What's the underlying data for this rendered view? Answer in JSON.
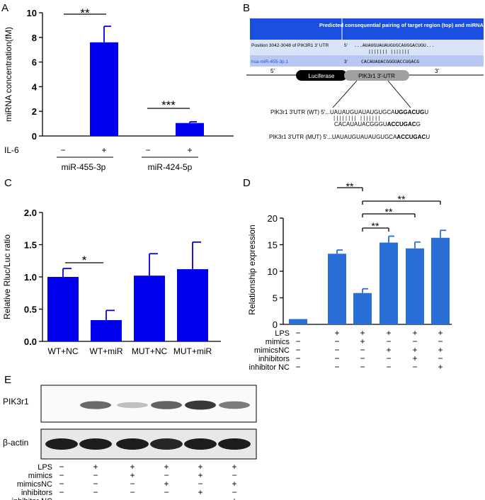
{
  "colors": {
    "bar_blue": "#0000ee",
    "bar_mid": "#2a6fd6",
    "header_blue": "#1a4fe0",
    "row_light": "#b8c8f2",
    "row_lighter": "#dbe3f8",
    "pill_black": "#000000",
    "pill_gray": "#a0a0a0",
    "band_dark": "#161616"
  },
  "panels": {
    "A": "A",
    "B": "B",
    "C": "C",
    "D": "D",
    "E": "E"
  },
  "chart_data": [
    {
      "panel": "A",
      "type": "bar",
      "ylabel": "miRNA concentration(fM)",
      "ylim": [
        0,
        10
      ],
      "yticks": [
        "0",
        "2",
        "4",
        "6",
        "8",
        "10"
      ],
      "categories": [
        "miR-455-3p −",
        "miR-455-3p +",
        "miR-424-5p −",
        "miR-424-5p +"
      ],
      "values": [
        0,
        7.6,
        0,
        1.05
      ],
      "errors": [
        0,
        1.3,
        0,
        0.1
      ],
      "treatment_label": "IL-6",
      "treatment_signs": [
        "−",
        "+",
        "−",
        "+"
      ],
      "groups": [
        "miR-455-3p",
        "miR-424-5p"
      ],
      "significance": [
        "**",
        "***"
      ]
    },
    {
      "panel": "C",
      "type": "bar",
      "ylabel": "Relative Rluc/Luc ratio",
      "ylim": [
        0,
        2.0
      ],
      "yticks": [
        "0.0",
        "0.5",
        "1.0",
        "1.5",
        "2.0"
      ],
      "categories": [
        "WT+NC",
        "WT+miR",
        "MUT+NC",
        "MUT+miR"
      ],
      "values": [
        1.0,
        0.33,
        1.02,
        1.12
      ],
      "errors": [
        0.13,
        0.15,
        0.34,
        0.42
      ],
      "significance": [
        "*"
      ]
    },
    {
      "panel": "D",
      "type": "bar",
      "ylabel": "Relationship expression",
      "ylim": [
        0,
        20
      ],
      "yticks": [
        "0",
        "5",
        "10",
        "15",
        "20"
      ],
      "values": [
        1.0,
        13.3,
        5.9,
        15.4,
        14.3,
        16.3
      ],
      "errors": [
        0,
        0.7,
        0.8,
        1.2,
        1.2,
        1.4
      ],
      "significance": [
        "**",
        "**",
        "**",
        "**"
      ],
      "row_labels": [
        "LPS",
        "mimics",
        "mimicsNC",
        "inhibitors",
        "inhibitor NC"
      ],
      "row_signs": [
        [
          "−",
          "+",
          "+",
          "+",
          "+",
          "+"
        ],
        [
          "−",
          "−",
          "+",
          "−",
          "−",
          "−"
        ],
        [
          "−",
          "−",
          "−",
          "+",
          "+",
          "+"
        ],
        [
          "−",
          "−",
          "−",
          "−",
          "+",
          "−"
        ],
        [
          "−",
          "−",
          "−",
          "−",
          "−",
          "+"
        ]
      ]
    }
  ],
  "panel_b": {
    "header": "Predicted consequential pairing of target region (top) and miRNA (bottom)",
    "row1_label": "Position 3042-3048 of PIK3R1 3' UTR",
    "row1_prime": "5'",
    "row1_seq": "...AUAUGUAUAUGUGCAUGGACUGU...",
    "pairs": "|||||||       |||||||",
    "row2_label": "hsa-miR-455-3p.1",
    "row2_prime": "3'",
    "row2_seq": "CACAUAUACGGGUACCUGACG",
    "prime5": "5'",
    "prime3": "3'",
    "luciferase": "Luciferase",
    "utr": "PIK3r1 3'-UTR",
    "wt_label": "PIK3r1 3'UTR (WT) 5'...",
    "wt_seq": "UAUAUGUAUAUGUGCA",
    "wt_bold": "UGGACUG",
    "wt_end": "U",
    "pair_lines": "||||||||      |||||||",
    "mir_seq": "CACAUAUACGGGU",
    "mir_bold": "ACCUGAC",
    "mir_end": "G",
    "mut_label": "PIK3r1 3'UTR (MUT) 5'...",
    "mut_seq": "UAUAUGUAUAUGUGCA",
    "mut_bold": "ACCUGAC",
    "mut_end": "U"
  },
  "panel_e": {
    "blot1": "PIK3r1",
    "blot2": "β-actin",
    "band1": [
      0.0,
      0.55,
      0.05,
      0.6,
      0.85,
      0.45
    ],
    "band2": [
      0.95,
      0.95,
      0.95,
      0.9,
      0.95,
      0.95
    ],
    "row_labels": [
      "LPS",
      "mimics",
      "mimicsNC",
      "inhibitors",
      "inhibitor NC"
    ],
    "row_signs": [
      [
        "−",
        "+",
        "+",
        "+",
        "+",
        "+"
      ],
      [
        "−",
        "−",
        "+",
        "−",
        "+",
        "−"
      ],
      [
        "−",
        "−",
        "−",
        "+",
        "−",
        "+"
      ],
      [
        "−",
        "−",
        "−",
        "−",
        "+",
        "−"
      ],
      [
        "−",
        "−",
        "−",
        "−",
        "−",
        "+"
      ]
    ]
  }
}
